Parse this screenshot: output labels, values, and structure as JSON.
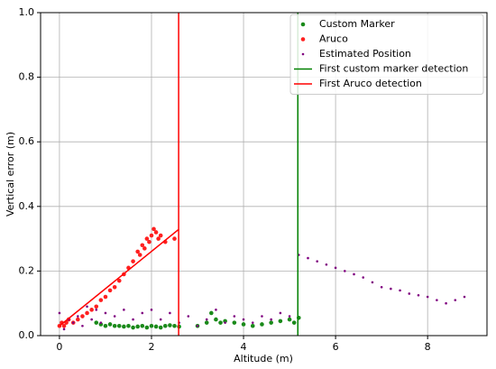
{
  "chart_data": {
    "type": "scatter",
    "xlabel": "Altitude (m)",
    "ylabel": "Vertical error (m)",
    "xlim": [
      -0.41,
      9.29
    ],
    "ylim": [
      0,
      1
    ],
    "xticks": [
      0,
      2,
      4,
      6,
      8
    ],
    "yticks": [
      {
        "value": 0,
        "label": "0.0"
      },
      0.2,
      0.4,
      0.6,
      0.8,
      {
        "value": 1,
        "label": "1.0"
      }
    ],
    "grid": true,
    "legend": "upper right",
    "series": [
      {
        "name": "Custom Marker",
        "color": "#1a8a1a",
        "style": "marker",
        "x": [
          0.8,
          0.9,
          1.0,
          1.1,
          1.2,
          1.3,
          1.4,
          1.5,
          1.6,
          1.7,
          1.8,
          1.9,
          2.0,
          2.1,
          2.2,
          2.3,
          2.4,
          2.5,
          2.6,
          3.0,
          3.2,
          3.3,
          3.4,
          3.5,
          3.6,
          3.8,
          4.0,
          4.2,
          4.4,
          4.6,
          4.8,
          5.0,
          5.1,
          5.2
        ],
        "values": [
          0.04,
          0.035,
          0.03,
          0.035,
          0.03,
          0.03,
          0.028,
          0.03,
          0.025,
          0.028,
          0.03,
          0.025,
          0.03,
          0.028,
          0.025,
          0.03,
          0.032,
          0.03,
          0.028,
          0.03,
          0.04,
          0.07,
          0.05,
          0.04,
          0.045,
          0.04,
          0.035,
          0.03,
          0.035,
          0.04,
          0.045,
          0.05,
          0.04,
          0.055
        ]
      },
      {
        "name": "Aruco",
        "color": "#ff2020",
        "style": "marker",
        "x": [
          0.0,
          0.05,
          0.1,
          0.15,
          0.2,
          0.3,
          0.4,
          0.5,
          0.6,
          0.7,
          0.8,
          0.9,
          1.0,
          1.1,
          1.2,
          1.3,
          1.4,
          1.5,
          1.6,
          1.7,
          1.75,
          1.8,
          1.85,
          1.9,
          1.95,
          2.0,
          2.05,
          2.1,
          2.15,
          2.2,
          2.3,
          2.5
        ],
        "values": [
          0.03,
          0.04,
          0.03,
          0.04,
          0.05,
          0.04,
          0.05,
          0.06,
          0.07,
          0.08,
          0.09,
          0.11,
          0.12,
          0.14,
          0.15,
          0.17,
          0.19,
          0.21,
          0.23,
          0.26,
          0.25,
          0.28,
          0.27,
          0.3,
          0.29,
          0.31,
          0.33,
          0.32,
          0.3,
          0.31,
          0.29,
          0.3
        ]
      },
      {
        "name": "Estimated Position",
        "color": "#800080",
        "style": "dot",
        "x": [
          0,
          0.1,
          0.2,
          0.3,
          0.4,
          0.5,
          0.6,
          0.7,
          0.8,
          0.9,
          1.0,
          1.2,
          1.4,
          1.6,
          1.8,
          2.0,
          2.2,
          2.4,
          2.6,
          2.8,
          3.0,
          3.2,
          3.4,
          3.6,
          3.8,
          4.0,
          4.2,
          4.4,
          4.6,
          4.8,
          5.0,
          5.2,
          5.4,
          5.6,
          5.8,
          6.0,
          6.2,
          6.4,
          6.6,
          6.8,
          7.0,
          7.2,
          7.4,
          7.6,
          7.8,
          8.0,
          8.2,
          8.4,
          8.6,
          8.8
        ],
        "values": [
          0.07,
          0.02,
          0.05,
          0.04,
          0.06,
          0.03,
          0.09,
          0.05,
          0.08,
          0.04,
          0.07,
          0.06,
          0.08,
          0.05,
          0.07,
          0.08,
          0.05,
          0.07,
          0.04,
          0.06,
          0.03,
          0.05,
          0.08,
          0.04,
          0.06,
          0.05,
          0.04,
          0.06,
          0.05,
          0.07,
          0.06,
          0.25,
          0.24,
          0.23,
          0.22,
          0.21,
          0.2,
          0.19,
          0.18,
          0.165,
          0.15,
          0.145,
          0.14,
          0.13,
          0.125,
          0.12,
          0.11,
          0.1,
          0.11,
          0.12
        ]
      },
      {
        "name": "First custom marker detection",
        "color": "#008000",
        "style": "line",
        "x": [
          5.18,
          5.18
        ],
        "values": [
          0,
          1
        ]
      },
      {
        "name": "First Aruco detection",
        "color": "#ff0000",
        "style": "line",
        "x": [
          2.59,
          2.59
        ],
        "values": [
          0,
          1
        ]
      },
      {
        "color": "#ff0000",
        "style": "line",
        "x": [
          0,
          2.6
        ],
        "values": [
          0.03,
          0.33
        ]
      }
    ]
  }
}
